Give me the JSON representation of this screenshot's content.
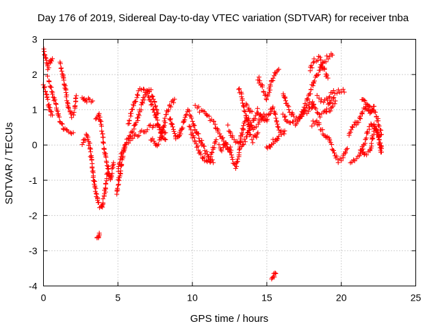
{
  "chart_data": {
    "type": "scatter",
    "title": "Day 176 of 2019, Sidereal Day-to-day VTEC variation (SDTVAR) for receiver tnba",
    "xlabel": "GPS time / hours",
    "ylabel": "SDTVAR / TECUs",
    "xlim": [
      0,
      25
    ],
    "ylim": [
      -4,
      3
    ],
    "xticks": [
      0,
      5,
      10,
      15,
      20,
      25
    ],
    "yticks": [
      -4,
      -3,
      -2,
      -1,
      0,
      1,
      2,
      3
    ],
    "xtick_labels": [
      "0",
      "5",
      "10",
      "15",
      "20",
      "25"
    ],
    "ytick_labels": [
      "-4",
      "-3",
      "-2",
      "-1",
      "0",
      "1",
      "2",
      "3"
    ],
    "grid": true,
    "marker": "plus",
    "color": "#ff0000",
    "series_traces": [
      [
        [
          0.0,
          2.7
        ],
        [
          0.15,
          2.5
        ],
        [
          0.3,
          2.2
        ],
        [
          0.45,
          2.4
        ],
        [
          0.6,
          2.45
        ]
      ],
      [
        [
          0.0,
          1.7
        ],
        [
          0.15,
          1.5
        ],
        [
          0.3,
          1.2
        ],
        [
          0.45,
          0.95
        ],
        [
          0.6,
          0.85
        ]
      ],
      [
        [
          0.3,
          1.9
        ],
        [
          0.6,
          1.5
        ],
        [
          0.8,
          1.2
        ],
        [
          1.0,
          0.8
        ],
        [
          1.3,
          0.5
        ],
        [
          1.6,
          0.35
        ],
        [
          2.0,
          0.35
        ]
      ],
      [
        [
          1.1,
          2.3
        ],
        [
          1.3,
          2.0
        ],
        [
          1.5,
          1.5
        ],
        [
          1.7,
          1.0
        ],
        [
          1.9,
          0.8
        ],
        [
          2.1,
          1.0
        ],
        [
          2.2,
          1.4
        ]
      ],
      [
        [
          2.6,
          1.4
        ],
        [
          2.8,
          1.25
        ],
        [
          3.0,
          1.3
        ],
        [
          3.3,
          1.25
        ]
      ],
      [
        [
          2.6,
          0.0
        ],
        [
          2.9,
          0.3
        ],
        [
          3.1,
          0.0
        ],
        [
          3.3,
          -0.7
        ],
        [
          3.5,
          -1.3
        ],
        [
          3.7,
          -1.7
        ],
        [
          3.9,
          -1.8
        ],
        [
          4.1,
          -1.4
        ],
        [
          4.3,
          -0.8
        ],
        [
          4.5,
          -1.0
        ],
        [
          4.7,
          -0.5
        ]
      ],
      [
        [
          3.5,
          0.7
        ],
        [
          3.7,
          0.9
        ],
        [
          3.9,
          0.5
        ],
        [
          4.1,
          -0.2
        ],
        [
          4.3,
          -0.6
        ],
        [
          4.5,
          -0.9
        ]
      ],
      [
        [
          3.6,
          -2.7
        ],
        [
          3.7,
          -2.6
        ],
        [
          3.75,
          -2.5
        ]
      ],
      [
        [
          4.9,
          -1.4
        ],
        [
          5.1,
          -0.9
        ],
        [
          5.3,
          -0.4
        ],
        [
          5.5,
          0.0
        ],
        [
          5.8,
          0.1
        ],
        [
          6.1,
          0.2
        ],
        [
          6.4,
          0.3
        ],
        [
          6.7,
          0.4
        ],
        [
          7.0,
          0.45
        ],
        [
          7.3,
          0.55
        ],
        [
          7.6,
          0.6
        ],
        [
          7.9,
          0.5
        ],
        [
          8.2,
          0.35
        ]
      ],
      [
        [
          5.0,
          -0.7
        ],
        [
          5.3,
          -0.2
        ],
        [
          5.6,
          0.1
        ],
        [
          5.9,
          0.3
        ],
        [
          6.2,
          0.6
        ],
        [
          6.5,
          1.0
        ],
        [
          6.8,
          1.4
        ],
        [
          7.1,
          1.6
        ],
        [
          7.4,
          1.3
        ],
        [
          7.7,
          0.9
        ]
      ],
      [
        [
          5.7,
          0.6
        ],
        [
          5.9,
          0.9
        ],
        [
          6.1,
          1.2
        ],
        [
          6.4,
          1.5
        ],
        [
          6.7,
          1.6
        ],
        [
          7.0,
          1.45
        ],
        [
          7.3,
          1.1
        ],
        [
          7.6,
          0.75
        ],
        [
          7.9,
          0.3
        ],
        [
          8.2,
          0.15
        ]
      ],
      [
        [
          7.2,
          0.2
        ],
        [
          7.4,
          0.1
        ],
        [
          7.6,
          0.0
        ],
        [
          7.8,
          0.1
        ],
        [
          8.0,
          0.4
        ],
        [
          8.2,
          0.8
        ],
        [
          8.5,
          1.1
        ],
        [
          8.8,
          1.3
        ]
      ],
      [
        [
          8.5,
          0.8
        ],
        [
          8.7,
          0.5
        ],
        [
          8.9,
          0.2
        ],
        [
          9.1,
          0.2
        ],
        [
          9.3,
          0.5
        ],
        [
          9.5,
          0.8
        ],
        [
          9.7,
          1.0
        ]
      ],
      [
        [
          9.8,
          0.9
        ],
        [
          10.0,
          0.7
        ],
        [
          10.2,
          0.45
        ],
        [
          10.4,
          0.25
        ],
        [
          10.6,
          0.1
        ],
        [
          10.8,
          -0.1
        ],
        [
          11.0,
          -0.3
        ],
        [
          11.2,
          -0.45
        ],
        [
          11.4,
          -0.5
        ]
      ],
      [
        [
          9.8,
          0.5
        ],
        [
          10.1,
          0.15
        ],
        [
          10.4,
          -0.15
        ],
        [
          10.7,
          -0.35
        ],
        [
          11.0,
          -0.5
        ],
        [
          11.2,
          -0.4
        ],
        [
          11.4,
          -0.1
        ],
        [
          11.6,
          0.15
        ]
      ],
      [
        [
          10.2,
          1.1
        ],
        [
          10.5,
          1.0
        ],
        [
          10.8,
          0.9
        ],
        [
          11.1,
          0.75
        ],
        [
          11.4,
          0.65
        ],
        [
          11.7,
          0.4
        ],
        [
          12.0,
          0.2
        ],
        [
          12.3,
          0.0
        ],
        [
          12.5,
          -0.2
        ],
        [
          12.7,
          -0.4
        ],
        [
          12.9,
          -0.6
        ],
        [
          13.1,
          -0.3
        ],
        [
          13.3,
          0.3
        ],
        [
          13.5,
          0.65
        ],
        [
          13.8,
          0.7
        ],
        [
          14.1,
          0.5
        ],
        [
          14.4,
          0.6
        ],
        [
          14.7,
          0.8
        ],
        [
          15.0,
          0.85
        ]
      ],
      [
        [
          11.8,
          0.0
        ],
        [
          12.0,
          -0.1
        ],
        [
          12.2,
          0.05
        ],
        [
          12.4,
          -0.05
        ],
        [
          12.6,
          -0.15
        ]
      ],
      [
        [
          12.4,
          0.5
        ],
        [
          12.7,
          0.2
        ],
        [
          13.0,
          0.1
        ],
        [
          13.3,
          0.0
        ],
        [
          13.6,
          0.2
        ],
        [
          13.9,
          0.5
        ],
        [
          14.2,
          0.8
        ],
        [
          14.4,
          1.0
        ],
        [
          14.6,
          0.8
        ]
      ],
      [
        [
          13.1,
          1.6
        ],
        [
          13.3,
          1.4
        ],
        [
          13.5,
          1.0
        ],
        [
          13.7,
          0.7
        ],
        [
          13.9,
          0.3
        ]
      ],
      [
        [
          13.6,
          1.1
        ],
        [
          13.8,
          1.0
        ],
        [
          14.0,
          0.95
        ]
      ],
      [
        [
          14.0,
          0.1
        ],
        [
          14.2,
          0.2
        ],
        [
          14.4,
          0.35
        ]
      ],
      [
        [
          14.4,
          1.9
        ],
        [
          14.6,
          1.75
        ],
        [
          14.8,
          1.5
        ],
        [
          15.0,
          1.3
        ],
        [
          15.2,
          1.6
        ],
        [
          15.4,
          1.9
        ],
        [
          15.6,
          2.05
        ],
        [
          15.8,
          2.15
        ]
      ],
      [
        [
          14.6,
          0.8
        ],
        [
          14.8,
          0.7
        ],
        [
          15.0,
          0.75
        ],
        [
          15.2,
          0.9
        ],
        [
          15.4,
          1.1
        ],
        [
          15.6,
          0.8
        ],
        [
          15.8,
          0.45
        ],
        [
          16.0,
          0.35
        ],
        [
          16.2,
          0.4
        ]
      ],
      [
        [
          15.0,
          -0.1
        ],
        [
          15.2,
          -0.05
        ],
        [
          15.4,
          0.1
        ],
        [
          15.6,
          0.1
        ],
        [
          15.8,
          0.25
        ]
      ],
      [
        [
          15.3,
          -3.8
        ],
        [
          15.45,
          -3.7
        ],
        [
          15.6,
          -3.65
        ]
      ],
      [
        [
          16.1,
          1.5
        ],
        [
          16.3,
          1.2
        ],
        [
          16.5,
          1.0
        ],
        [
          16.8,
          0.8
        ],
        [
          17.1,
          0.7
        ],
        [
          17.4,
          0.85
        ],
        [
          17.7,
          1.1
        ],
        [
          18.0,
          1.2
        ],
        [
          18.3,
          1.0
        ],
        [
          18.6,
          0.85
        ],
        [
          18.9,
          0.9
        ],
        [
          19.2,
          1.2
        ],
        [
          19.5,
          1.35
        ]
      ],
      [
        [
          16.1,
          0.9
        ],
        [
          16.4,
          0.7
        ],
        [
          16.7,
          0.6
        ],
        [
          17.0,
          0.6
        ],
        [
          17.3,
          0.8
        ],
        [
          17.6,
          1.2
        ],
        [
          17.9,
          1.5
        ],
        [
          18.2,
          1.85
        ],
        [
          18.5,
          2.1
        ],
        [
          18.8,
          2.35
        ],
        [
          19.1,
          2.5
        ],
        [
          19.4,
          2.55
        ]
      ],
      [
        [
          17.7,
          0.95
        ],
        [
          17.9,
          1.05
        ],
        [
          18.1,
          1.1
        ]
      ],
      [
        [
          17.9,
          2.1
        ],
        [
          18.2,
          2.4
        ],
        [
          18.5,
          2.5
        ],
        [
          18.8,
          2.2
        ],
        [
          19.1,
          1.9
        ]
      ],
      [
        [
          18.0,
          0.6
        ],
        [
          18.3,
          0.7
        ],
        [
          18.6,
          0.5
        ],
        [
          18.9,
          0.3
        ],
        [
          19.2,
          0.1
        ],
        [
          19.5,
          -0.2
        ],
        [
          19.8,
          -0.45
        ],
        [
          20.1,
          -0.35
        ],
        [
          20.4,
          -0.1
        ]
      ],
      [
        [
          18.4,
          1.35
        ],
        [
          18.7,
          1.25
        ],
        [
          19.0,
          1.3
        ],
        [
          19.3,
          1.45
        ],
        [
          19.6,
          1.5
        ],
        [
          19.9,
          1.55
        ],
        [
          20.2,
          1.5
        ]
      ],
      [
        [
          19.2,
          1.0
        ],
        [
          19.4,
          1.15
        ],
        [
          19.6,
          1.25
        ]
      ],
      [
        [
          20.5,
          0.3
        ],
        [
          20.7,
          0.5
        ],
        [
          20.9,
          0.6
        ],
        [
          21.1,
          0.65
        ],
        [
          21.3,
          0.8
        ],
        [
          21.5,
          1.0
        ],
        [
          21.7,
          1.1
        ],
        [
          21.9,
          1.05
        ],
        [
          22.1,
          1.0
        ],
        [
          22.3,
          0.9
        ],
        [
          22.5,
          0.6
        ],
        [
          22.7,
          0.3
        ]
      ],
      [
        [
          20.6,
          -0.5
        ],
        [
          20.9,
          -0.4
        ],
        [
          21.2,
          -0.3
        ],
        [
          21.5,
          0.0
        ],
        [
          21.7,
          0.3
        ],
        [
          21.9,
          0.5
        ],
        [
          22.1,
          0.6
        ],
        [
          22.3,
          0.5
        ],
        [
          22.5,
          0.2
        ],
        [
          22.7,
          -0.2
        ]
      ],
      [
        [
          21.4,
          1.3
        ],
        [
          21.6,
          1.2
        ],
        [
          21.8,
          1.0
        ],
        [
          22.0,
          0.9
        ],
        [
          22.2,
          1.1
        ]
      ],
      [
        [
          21.3,
          -0.1
        ],
        [
          21.6,
          -0.3
        ],
        [
          21.9,
          -0.2
        ],
        [
          22.1,
          0.2
        ],
        [
          22.3,
          0.5
        ],
        [
          22.5,
          0.3
        ],
        [
          22.7,
          -0.1
        ]
      ]
    ]
  }
}
